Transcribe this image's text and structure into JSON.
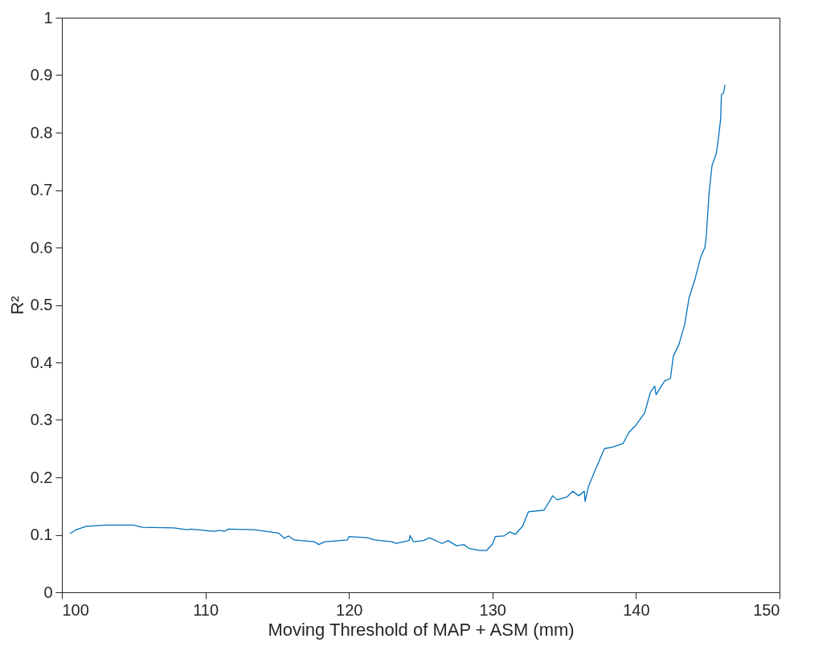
{
  "chart_data": {
    "type": "line",
    "xlabel": "Moving Threshold of MAP + ASM (mm)",
    "ylabel": "R²",
    "xlim": [
      100,
      150
    ],
    "xticks": [
      100,
      110,
      120,
      130,
      140,
      150
    ],
    "ylim": [
      0,
      1
    ],
    "yticks": [
      0,
      0.1,
      0.2,
      0.3,
      0.4,
      0.5,
      0.6,
      0.7,
      0.8,
      0.9,
      1
    ],
    "grid": false,
    "marker": "none",
    "line_style": "solid",
    "series": [
      {
        "color": "#0072bd",
        "x": [
          100.56,
          101.0,
          101.7,
          103.1,
          105.0,
          105.6,
          107.8,
          108.7,
          109.0,
          110.6,
          111.0,
          111.3,
          111.6,
          113.4,
          115.1,
          115.5,
          115.8,
          116.2,
          117.6,
          117.9,
          118.3,
          119.9,
          120.0,
          121.3,
          121.8,
          123.0,
          123.3,
          124.2,
          124.25,
          124.5,
          125.2,
          125.6,
          126.5,
          126.9,
          127.5,
          128.0,
          128.4,
          129.1,
          129.6,
          130.0,
          130.2,
          130.8,
          131.2,
          131.6,
          132.1,
          132.5,
          133.6,
          134.2,
          134.5,
          135.2,
          135.6,
          136.0,
          136.4,
          136.45,
          136.7,
          137.2,
          137.8,
          138.4,
          139.1,
          139.5,
          140.0,
          140.6,
          141.0,
          141.3,
          141.4,
          142.0,
          142.4,
          142.6,
          143.0,
          143.4,
          143.7,
          144.1,
          144.5,
          144.8,
          144.9,
          145.1,
          145.3,
          145.6,
          145.7,
          145.9,
          145.95,
          146.1,
          146.2
        ],
        "values": [
          0.102,
          0.109,
          0.115,
          0.117,
          0.117,
          0.113,
          0.112,
          0.109,
          0.11,
          0.106,
          0.108,
          0.106,
          0.11,
          0.109,
          0.103,
          0.094,
          0.098,
          0.091,
          0.088,
          0.083,
          0.088,
          0.091,
          0.097,
          0.095,
          0.091,
          0.088,
          0.085,
          0.09,
          0.099,
          0.088,
          0.09,
          0.095,
          0.085,
          0.09,
          0.081,
          0.083,
          0.076,
          0.073,
          0.073,
          0.084,
          0.097,
          0.098,
          0.105,
          0.101,
          0.115,
          0.14,
          0.143,
          0.168,
          0.161,
          0.166,
          0.176,
          0.168,
          0.176,
          0.158,
          0.185,
          0.215,
          0.25,
          0.253,
          0.259,
          0.278,
          0.291,
          0.312,
          0.348,
          0.359,
          0.344,
          0.368,
          0.372,
          0.411,
          0.432,
          0.467,
          0.513,
          0.544,
          0.583,
          0.6,
          0.621,
          0.698,
          0.743,
          0.764,
          0.782,
          0.824,
          0.866,
          0.869,
          0.883
        ]
      }
    ]
  }
}
